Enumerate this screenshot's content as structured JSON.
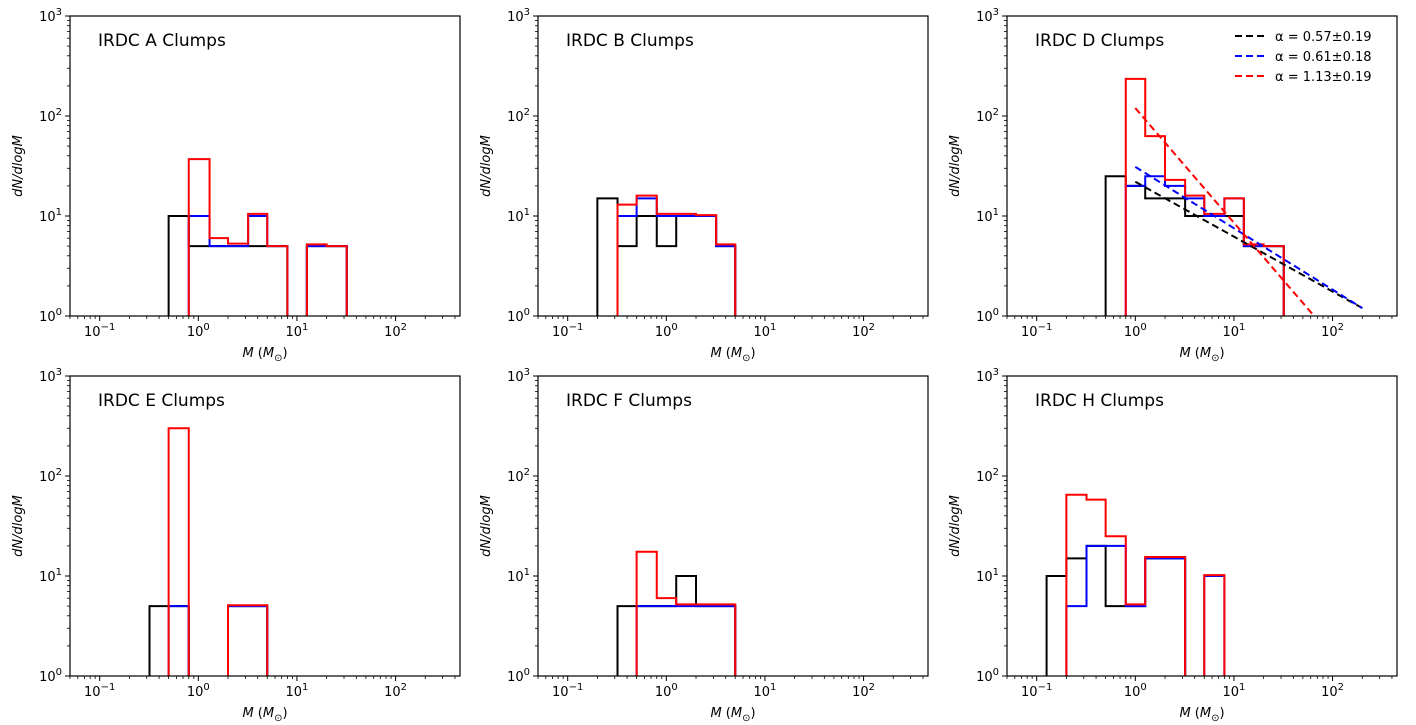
{
  "chart_data": [
    {
      "type": "step-histogram",
      "title": "IRDC A Clumps",
      "xlabel": "M (M⊙)",
      "ylabel": "dN/dlogM",
      "xscale": "log",
      "yscale": "log",
      "xlim": [
        0.05,
        450
      ],
      "ylim": [
        1,
        1000
      ],
      "xticks": [
        "10⁻¹",
        "10⁰",
        "10¹",
        "10²"
      ],
      "yticks": [
        "10⁰",
        "10¹",
        "10²",
        "10³"
      ],
      "series": [
        {
          "color": "#000000",
          "edges": [
            0.5,
            0.8,
            1.3,
            2.0,
            3.2,
            5.0,
            8.0,
            12.6,
            20.0,
            32.0
          ],
          "values": [
            10,
            5,
            5,
            5,
            5,
            5,
            0,
            5,
            5
          ]
        },
        {
          "color": "#0000ff",
          "edges": [
            0.8,
            1.3,
            2.0,
            3.2,
            5.0,
            8.0,
            12.6,
            20.0,
            32.0
          ],
          "values": [
            10,
            5,
            5,
            10,
            5,
            0,
            5,
            5
          ]
        },
        {
          "color": "#ff0000",
          "edges": [
            0.8,
            1.3,
            2.0,
            3.2,
            5.0,
            8.0,
            12.6,
            20.0,
            32.0
          ],
          "values": [
            37,
            6,
            5.3,
            10.5,
            5,
            0,
            5.2,
            5
          ]
        }
      ]
    },
    {
      "type": "step-histogram",
      "title": "IRDC B Clumps",
      "xlabel": "M (M⊙)",
      "ylabel": "dN/dlogM",
      "xscale": "log",
      "yscale": "log",
      "xlim": [
        0.05,
        450
      ],
      "ylim": [
        1,
        1000
      ],
      "xticks": [
        "10⁻¹",
        "10⁰",
        "10¹",
        "10²"
      ],
      "yticks": [
        "10⁰",
        "10¹",
        "10²",
        "10³"
      ],
      "series": [
        {
          "color": "#000000",
          "edges": [
            0.2,
            0.32,
            0.5,
            0.8,
            1.26,
            2.0,
            3.2,
            5.0
          ],
          "values": [
            15,
            5,
            10,
            5,
            10,
            10,
            5
          ]
        },
        {
          "color": "#0000ff",
          "edges": [
            0.32,
            0.5,
            0.8,
            1.26,
            2.0,
            3.2,
            5.0
          ],
          "values": [
            10,
            15,
            10,
            10,
            10,
            5
          ]
        },
        {
          "color": "#ff0000",
          "edges": [
            0.32,
            0.5,
            0.8,
            1.26,
            2.0,
            3.2,
            5.0
          ],
          "values": [
            13,
            16,
            10.5,
            10.5,
            10.2,
            5.2
          ]
        }
      ]
    },
    {
      "type": "step-histogram",
      "title": "IRDC D Clumps",
      "xlabel": "M (M⊙)",
      "ylabel": "dN/dlogM",
      "xscale": "log",
      "yscale": "log",
      "xlim": [
        0.05,
        450
      ],
      "ylim": [
        1,
        1000
      ],
      "xticks": [
        "10⁻¹",
        "10⁰",
        "10¹",
        "10²"
      ],
      "yticks": [
        "10⁰",
        "10¹",
        "10²",
        "10³"
      ],
      "series": [
        {
          "color": "#000000",
          "edges": [
            0.5,
            0.8,
            1.26,
            2.0,
            3.2,
            5.0,
            8.0,
            12.6,
            20.0,
            32.0
          ],
          "values": [
            25,
            20,
            15,
            15,
            10,
            10,
            10,
            5,
            5
          ]
        },
        {
          "color": "#0000ff",
          "edges": [
            0.8,
            1.26,
            2.0,
            3.2,
            5.0,
            8.0,
            12.6,
            20.0,
            32.0
          ],
          "values": [
            20,
            25,
            20,
            15,
            10,
            15,
            5,
            5
          ]
        },
        {
          "color": "#ff0000",
          "edges": [
            0.8,
            1.26,
            2.0,
            3.2,
            5.0,
            8.0,
            12.6,
            20.0,
            32.0
          ],
          "values": [
            235,
            63,
            23,
            16,
            10.5,
            15,
            5.2,
            5
          ]
        }
      ],
      "fits": [
        {
          "color": "#000000",
          "label": "α = 0.57±0.19",
          "x": [
            1.0,
            200
          ],
          "y": [
            22,
            1.2
          ]
        },
        {
          "color": "#0000ff",
          "label": "α = 0.61±0.18",
          "x": [
            1.0,
            200
          ],
          "y": [
            31,
            1.2
          ]
        },
        {
          "color": "#ff0000",
          "label": "α = 1.13±0.19",
          "x": [
            1.0,
            65
          ],
          "y": [
            120,
            1.0
          ]
        }
      ],
      "legend": "top-right"
    },
    {
      "type": "step-histogram",
      "title": "IRDC E Clumps",
      "xlabel": "M (M⊙)",
      "ylabel": "dN/dlogM",
      "xscale": "log",
      "yscale": "log",
      "xlim": [
        0.05,
        450
      ],
      "ylim": [
        1,
        1000
      ],
      "xticks": [
        "10⁻¹",
        "10⁰",
        "10¹",
        "10²"
      ],
      "yticks": [
        "10⁰",
        "10¹",
        "10²",
        "10³"
      ],
      "series": [
        {
          "color": "#000000",
          "edges": [
            0.32,
            0.5,
            0.8,
            1.26,
            2.0,
            3.2,
            5.0
          ],
          "values": [
            5,
            5,
            0,
            0,
            5,
            5
          ]
        },
        {
          "color": "#0000ff",
          "edges": [
            0.5,
            0.8,
            1.26,
            2.0,
            3.2,
            5.0
          ],
          "values": [
            5,
            0,
            0,
            5,
            5
          ]
        },
        {
          "color": "#ff0000",
          "edges": [
            0.5,
            0.8,
            1.26,
            2.0,
            3.2,
            5.0
          ],
          "values": [
            300,
            0,
            0,
            5.1,
            5.1
          ]
        }
      ]
    },
    {
      "type": "step-histogram",
      "title": "IRDC F Clumps",
      "xlabel": "M (M⊙)",
      "ylabel": "dN/dlogM",
      "xscale": "log",
      "yscale": "log",
      "xlim": [
        0.05,
        450
      ],
      "ylim": [
        1,
        1000
      ],
      "xticks": [
        "10⁻¹",
        "10⁰",
        "10¹",
        "10²"
      ],
      "yticks": [
        "10⁰",
        "10¹",
        "10²",
        "10³"
      ],
      "series": [
        {
          "color": "#000000",
          "edges": [
            0.32,
            0.5,
            0.8,
            1.26,
            2.0,
            3.2,
            5.0
          ],
          "values": [
            5,
            5,
            5,
            10,
            5,
            5
          ]
        },
        {
          "color": "#0000ff",
          "edges": [
            0.5,
            0.8,
            1.26,
            2.0,
            3.2,
            5.0
          ],
          "values": [
            5,
            5,
            5,
            5,
            5
          ]
        },
        {
          "color": "#ff0000",
          "edges": [
            0.5,
            0.8,
            1.26,
            2.0,
            3.2,
            5.0
          ],
          "values": [
            17.5,
            6,
            5.2,
            5.2,
            5.2
          ]
        }
      ]
    },
    {
      "type": "step-histogram",
      "title": "IRDC H Clumps",
      "xlabel": "M (M⊙)",
      "ylabel": "dN/dlogM",
      "xscale": "log",
      "yscale": "log",
      "xlim": [
        0.05,
        450
      ],
      "ylim": [
        1,
        1000
      ],
      "xticks": [
        "10⁻¹",
        "10⁰",
        "10¹",
        "10²"
      ],
      "yticks": [
        "10⁰",
        "10¹",
        "10²",
        "10³"
      ],
      "series": [
        {
          "color": "#000000",
          "edges": [
            0.126,
            0.2,
            0.32,
            0.5,
            0.8,
            1.26,
            2.0,
            3.2
          ],
          "values": [
            10,
            15,
            20,
            5,
            5,
            15,
            15
          ]
        },
        {
          "color": "#0000ff",
          "edges": [
            0.2,
            0.32,
            0.5,
            0.8,
            1.26,
            2.0,
            3.2,
            5.0,
            8.0
          ],
          "values": [
            5,
            20,
            20,
            5,
            15,
            15,
            0,
            10
          ]
        },
        {
          "color": "#ff0000",
          "edges": [
            0.2,
            0.32,
            0.5,
            0.8,
            1.26,
            2.0,
            3.2,
            5.0,
            8.0
          ],
          "values": [
            65,
            58,
            25,
            5.2,
            15.5,
            15.5,
            0,
            10.2
          ]
        }
      ]
    }
  ]
}
